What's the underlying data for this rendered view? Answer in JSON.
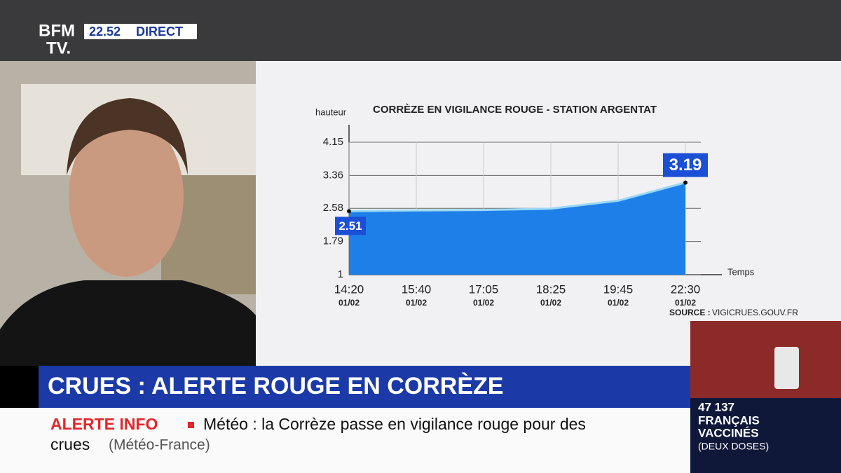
{
  "header": {
    "logo_top": "BFM",
    "logo_bottom": "TV.",
    "time": "22.52",
    "live": "DIRECT"
  },
  "chart_data": {
    "type": "area",
    "title": "CORRÈZE EN VIGILANCE ROUGE - STATION ARGENTAT",
    "y_label": "hauteur",
    "x_label": "Temps",
    "categories": [
      "14:20",
      "15:40",
      "17:05",
      "18:25",
      "19:45",
      "22:30"
    ],
    "dates": [
      "01/02",
      "01/02",
      "01/02",
      "01/02",
      "01/02",
      "01/02"
    ],
    "values": [
      2.51,
      2.53,
      2.54,
      2.57,
      2.76,
      3.19
    ],
    "labeled_points": [
      0,
      5
    ],
    "color": "#1f7fe8",
    "line_color": "#9ad8f6",
    "ylim": [
      1,
      4.15
    ],
    "yticks": [
      1,
      1.79,
      2.58,
      3.36,
      4.15
    ],
    "grid": true,
    "source_label": "SOURCE :",
    "source": "VIGICRUES.GOUV.FR"
  },
  "banner": {
    "headline": "CRUES : ALERTE ROUGE EN CORRÈZE"
  },
  "ticker": {
    "tag": "ALERTE INFO",
    "line1": "Météo : la Corrèze passe en vigilance rouge pour des",
    "line2": "crues",
    "credit": "(Météo-France)"
  },
  "side_panel": {
    "number": "47 137",
    "line1": "FRANÇAIS",
    "line2": "VACCINÉS",
    "line3": "(DEUX DOSES)"
  }
}
